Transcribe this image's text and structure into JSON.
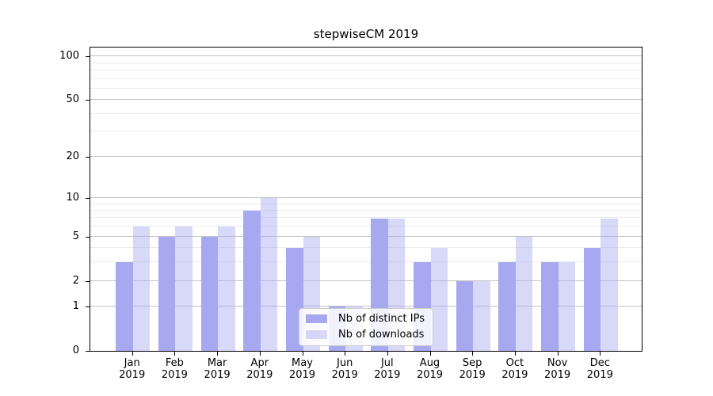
{
  "chart_data": {
    "type": "bar",
    "title": "stepwiseCM 2019",
    "year_label": "2019",
    "categories": [
      "Jan",
      "Feb",
      "Mar",
      "Apr",
      "May",
      "Jun",
      "Jul",
      "Aug",
      "Sep",
      "Oct",
      "Nov",
      "Dec"
    ],
    "series": [
      {
        "key": "distinct-ips",
        "name": "Nb of distinct IPs",
        "color": "#a8a8f0",
        "alpha": 1,
        "values": [
          3,
          5,
          5,
          8,
          4,
          1,
          7,
          3,
          2,
          3,
          3,
          4
        ]
      },
      {
        "key": "downloads",
        "name": "Nb of downloads",
        "color": "#a8a8f0",
        "alpha": 0.45,
        "values": [
          6,
          6,
          6,
          10,
          5,
          1,
          7,
          4,
          2,
          5,
          3,
          7
        ]
      }
    ],
    "yscale": "log1p",
    "yticks": [
      0,
      1,
      2,
      5,
      10,
      20,
      50,
      100
    ],
    "minor_yticks": [
      3,
      4,
      6,
      7,
      8,
      9,
      30,
      40,
      60,
      70,
      80,
      90
    ],
    "ylim": [
      0,
      115
    ],
    "grid": "horizontal major and minor",
    "legend_position": "lower center"
  },
  "colors": {
    "bar_distinct_ips": "#a8a8f0",
    "bar_downloads_effective": "#d8d8f8",
    "grid_major": "#c4c4c4",
    "grid_minor": "#ececec",
    "spine": "#000000",
    "legend_border": "#cccccc",
    "text": "#000000",
    "background": "#ffffff"
  }
}
